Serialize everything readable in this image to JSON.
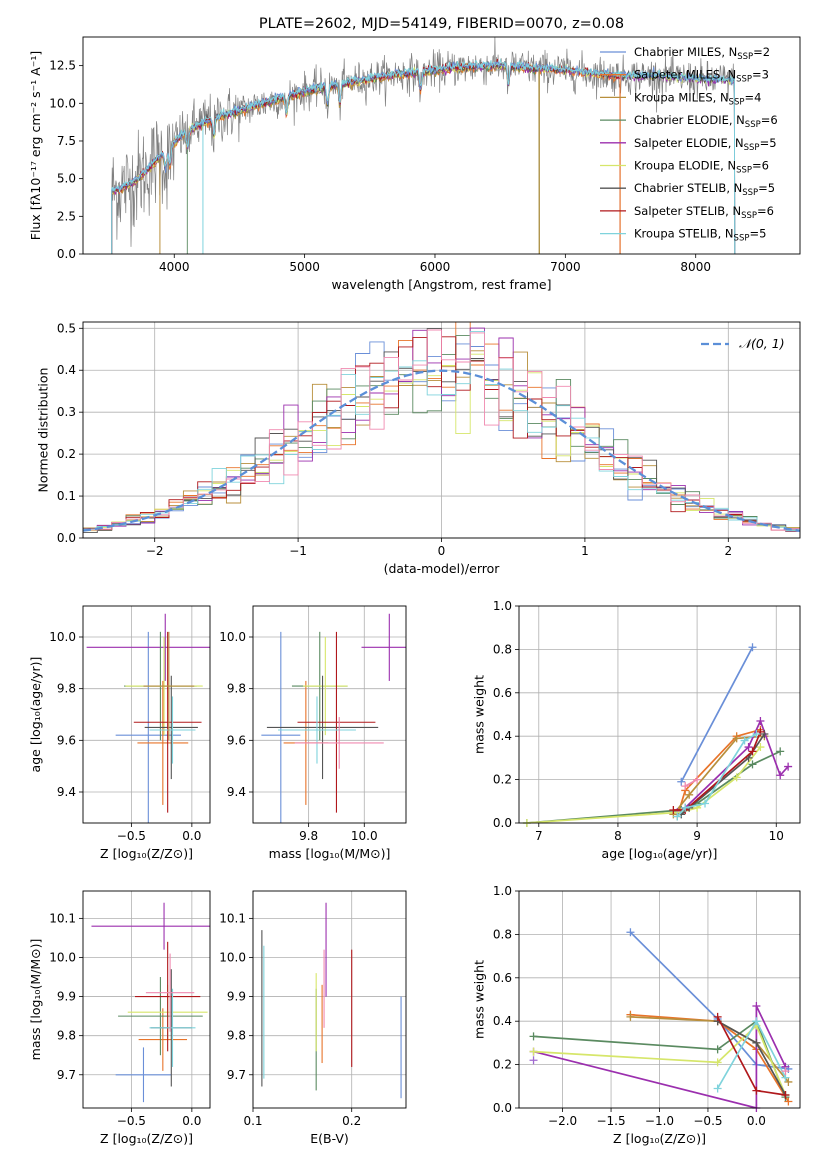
{
  "colors": {
    "Chabrier MILES": "#6a8fd8",
    "Salpeter MILES": "#e8742a",
    "Kroupa MILES": "#b88f3c",
    "Chabrier ELODIE": "#5a8a60",
    "Salpeter ELODIE": "#9b2fae",
    "Kroupa ELODIE": "#d6e66a",
    "Chabrier STELIB": "#555555",
    "Salpeter STELIB": "#b0181c",
    "Kroupa STELIB": "#7fd3dc",
    "extra_pink": "#f08ab0",
    "extra_olive": "#c6c02a",
    "extra_purple": "#a06ad0",
    "extra_lilac": "#c8a0e0",
    "normal_curve": "#5b8fd8",
    "grid": "#b0b0b0"
  },
  "chart_data": [
    {
      "id": "spectrum",
      "type": "line",
      "title": "PLATE=2602, MJD=54149, FIBERID=0070, z=0.08",
      "xlabel": "wavelength [Angstrom, rest frame]",
      "ylabel": "Flux [fλ10⁻¹⁷ erg cm⁻² s⁻¹ A⁻¹]",
      "xlim": [
        3300,
        8800
      ],
      "ylim": [
        0,
        14.4
      ],
      "xticks": [
        4000,
        5000,
        6000,
        7000,
        8000
      ],
      "xtick_labels": [
        "4000",
        "5000",
        "6000",
        "7000",
        "8000"
      ],
      "yticks": [
        0,
        2.5,
        5,
        7.5,
        10,
        12.5
      ],
      "ytick_labels": [
        "0.0",
        "2.5",
        "5.0",
        "7.5",
        "10.0",
        "12.5"
      ],
      "grid": false,
      "legend_placement": "right",
      "legend": [
        {
          "label": "Chabrier MILES, N",
          "sub": "SSP",
          "eq": "=2",
          "color_key": "Chabrier MILES"
        },
        {
          "label": "Salpeter MILES, N",
          "sub": "SSP",
          "eq": "=3",
          "color_key": "Salpeter MILES"
        },
        {
          "label": "Kroupa MILES, N",
          "sub": "SSP",
          "eq": "=4",
          "color_key": "Kroupa MILES"
        },
        {
          "label": "Chabrier ELODIE, N",
          "sub": "SSP",
          "eq": "=6",
          "color_key": "Chabrier ELODIE"
        },
        {
          "label": "Salpeter ELODIE, N",
          "sub": "SSP",
          "eq": "=5",
          "color_key": "Salpeter ELODIE"
        },
        {
          "label": "Kroupa ELODIE, N",
          "sub": "SSP",
          "eq": "=6",
          "color_key": "Kroupa ELODIE"
        },
        {
          "label": "Chabrier STELIB, N",
          "sub": "SSP",
          "eq": "=5",
          "color_key": "Chabrier STELIB"
        },
        {
          "label": "Salpeter STELIB, N",
          "sub": "SSP",
          "eq": "=6",
          "color_key": "Salpeter STELIB"
        },
        {
          "label": "Kroupa STELIB, N",
          "sub": "SSP",
          "eq": "=5",
          "color_key": "Kroupa STELIB"
        }
      ],
      "continuum": {
        "x": [
          3550,
          3700,
          3900,
          4100,
          4300,
          4500,
          4800,
          5000,
          5300,
          5600,
          5900,
          6200,
          6500,
          6800,
          7100,
          7400,
          7700,
          8000,
          8300
        ],
        "y": [
          4.2,
          4.8,
          6.5,
          8.2,
          9.0,
          9.5,
          10.3,
          10.8,
          11.3,
          11.8,
          12.1,
          12.4,
          12.5,
          12.3,
          12.1,
          11.8,
          11.8,
          11.6,
          11.5
        ]
      },
      "data_ranges": {
        "Chabrier MILES": [
          3520,
          8300
        ],
        "Salpeter MILES": [
          3520,
          7420
        ],
        "Kroupa MILES": [
          3520,
          6800
        ],
        "Chabrier ELODIE": [
          4100,
          6800
        ],
        "Salpeter ELODIE": [
          3520,
          8300
        ],
        "Kroupa ELODIE": [
          3520,
          8300
        ],
        "Chabrier STELIB": [
          3520,
          8300
        ],
        "Salpeter STELIB": [
          3520,
          7420
        ],
        "Kroupa STELIB": [
          3520,
          8300
        ]
      }
    },
    {
      "id": "residuals",
      "type": "line",
      "xlabel": "(data-model)/error",
      "ylabel": "Normed distribution",
      "xlim": [
        -2.5,
        2.5
      ],
      "ylim": [
        0,
        0.515
      ],
      "xticks": [
        -2,
        -1,
        0,
        1,
        2
      ],
      "xtick_labels": [
        "−2",
        "−1",
        "0",
        "1",
        "2"
      ],
      "yticks": [
        0,
        0.1,
        0.2,
        0.3,
        0.4,
        0.5
      ],
      "ytick_labels": [
        "0.0",
        "0.1",
        "0.2",
        "0.3",
        "0.4",
        "0.5"
      ],
      "grid": true,
      "legend_placement": "top-right",
      "legend": [
        {
          "label": "𝒩(0, 1)",
          "color_key": "normal_curve",
          "style": "dashed"
        }
      ],
      "bin_width": 0.1,
      "curve": {
        "mean": 0,
        "sigma": 1
      }
    },
    {
      "id": "age-vs-Z",
      "type": "scatter",
      "xlabel": "Z [log₁₀(Z/Z⊙)]",
      "ylabel": "age  [log₁₀(age/yr)]",
      "xlim": [
        -0.9,
        0.15
      ],
      "ylim": [
        9.28,
        10.12
      ],
      "xticks": [
        -0.5,
        0.0
      ],
      "xtick_labels": [
        "−0.5",
        "0.0"
      ],
      "yticks": [
        9.4,
        9.6,
        9.8,
        10.0
      ],
      "ytick_labels": [
        "9.4",
        "9.6",
        "9.8",
        "10.0"
      ],
      "grid": true,
      "errorbars": [
        {
          "color_key": "Chabrier MILES",
          "x": -0.36,
          "xerr": 0.27,
          "y": 9.62,
          "yerr": 0.4
        },
        {
          "color_key": "Salpeter ELODIE",
          "x": -0.22,
          "xerr": 0.65,
          "y": 9.96,
          "yerr": 0.13
        },
        {
          "color_key": "Salpeter MILES",
          "x": -0.24,
          "xerr": 0.21,
          "y": 9.59,
          "yerr": 0.24
        },
        {
          "color_key": "Chabrier ELODIE",
          "x": -0.26,
          "xerr": 0.3,
          "y": 9.81,
          "yerr": 0.21
        },
        {
          "color_key": "Kroupa ELODIE",
          "x": -0.23,
          "xerr": 0.32,
          "y": 9.81,
          "yerr": 0.19
        },
        {
          "color_key": "Chabrier STELIB",
          "x": -0.17,
          "xerr": 0.22,
          "y": 9.65,
          "yerr": 0.2
        },
        {
          "color_key": "Salpeter STELIB",
          "x": -0.2,
          "xerr": 0.28,
          "y": 9.67,
          "yerr": 0.35
        },
        {
          "color_key": "Kroupa STELIB",
          "x": -0.16,
          "xerr": 0.19,
          "y": 9.64,
          "yerr": 0.13
        },
        {
          "color_key": "Kroupa MILES",
          "x": -0.19,
          "xerr": 0.21,
          "y": 9.81,
          "yerr": 0.21
        }
      ]
    },
    {
      "id": "age-vs-mass",
      "type": "scatter",
      "xlabel": "mass [log₁₀(M/M⊙)]",
      "ylabel": "",
      "xlim": [
        9.6,
        10.15
      ],
      "ylim": [
        9.28,
        10.12
      ],
      "xticks": [
        9.8,
        10.0
      ],
      "xtick_labels": [
        "9.8",
        "10.0"
      ],
      "yticks": [
        9.4,
        9.6,
        9.8,
        10.0
      ],
      "ytick_labels": [
        "9.4",
        "9.6",
        "9.8",
        "10.0"
      ],
      "grid": true,
      "errorbars": [
        {
          "color_key": "Chabrier MILES",
          "x": 9.7,
          "xerr": 0.07,
          "y": 9.62,
          "yerr": 0.4
        },
        {
          "color_key": "Salpeter ELODIE",
          "x": 10.09,
          "xerr": 0.1,
          "y": 9.96,
          "yerr": 0.13
        },
        {
          "color_key": "Salpeter MILES",
          "x": 9.79,
          "xerr": 0.08,
          "y": 9.59,
          "yerr": 0.24
        },
        {
          "color_key": "Chabrier ELODIE",
          "x": 9.84,
          "xerr": 0.1,
          "y": 9.81,
          "yerr": 0.21
        },
        {
          "color_key": "Kroupa ELODIE",
          "x": 9.86,
          "xerr": 0.08,
          "y": 9.81,
          "yerr": 0.19
        },
        {
          "color_key": "Chabrier STELIB",
          "x": 9.85,
          "xerr": 0.2,
          "y": 9.65,
          "yerr": 0.2
        },
        {
          "color_key": "Salpeter STELIB",
          "x": 9.9,
          "xerr": 0.14,
          "y": 9.67,
          "yerr": 0.35
        },
        {
          "color_key": "Kroupa STELIB",
          "x": 9.83,
          "xerr": 0.14,
          "y": 9.64,
          "yerr": 0.13
        },
        {
          "color_key": "extra_pink",
          "x": 9.91,
          "xerr": 0.16,
          "y": 9.59,
          "yerr": 0.1
        }
      ]
    },
    {
      "id": "mass-weight-vs-age",
      "type": "line",
      "xlabel": "age  [log₁₀(age/yr)]",
      "ylabel": "mass weight",
      "xlim": [
        6.75,
        10.3
      ],
      "ylim": [
        0,
        1.0
      ],
      "xticks": [
        7,
        8,
        9,
        10
      ],
      "xtick_labels": [
        "7",
        "8",
        "9",
        "10"
      ],
      "yticks": [
        0,
        0.2,
        0.4,
        0.6,
        0.8,
        1.0
      ],
      "ytick_labels": [
        "0.0",
        "0.2",
        "0.4",
        "0.6",
        "0.8",
        "1.0"
      ],
      "grid": true,
      "series": [
        {
          "color_key": "Chabrier MILES",
          "x": [
            8.8,
            9.7
          ],
          "y": [
            0.19,
            0.81
          ]
        },
        {
          "color_key": "Salpeter MILES",
          "x": [
            8.75,
            8.85,
            9.5,
            9.8
          ],
          "y": [
            0.03,
            0.15,
            0.4,
            0.43
          ]
        },
        {
          "color_key": "Kroupa MILES",
          "x": [
            8.7,
            8.9,
            9.5,
            9.85
          ],
          "y": [
            0.04,
            0.13,
            0.39,
            0.4
          ]
        },
        {
          "color_key": "Chabrier ELODIE",
          "x": [
            6.85,
            8.8,
            9.0,
            9.7,
            10.05
          ],
          "y": [
            0.0,
            0.06,
            0.09,
            0.27,
            0.33
          ]
        },
        {
          "color_key": "Salpeter ELODIE",
          "x": [
            8.75,
            8.85,
            9.65,
            9.8,
            10.05,
            10.15
          ],
          "y": [
            0.05,
            0.07,
            0.35,
            0.47,
            0.22,
            0.26
          ]
        },
        {
          "color_key": "Kroupa ELODIE",
          "x": [
            6.85,
            8.8,
            9.0,
            9.5,
            9.8
          ],
          "y": [
            0.0,
            0.05,
            0.07,
            0.21,
            0.35
          ]
        },
        {
          "color_key": "Chabrier STELIB",
          "x": [
            8.8,
            8.9,
            9.65,
            9.85
          ],
          "y": [
            0.04,
            0.07,
            0.3,
            0.41
          ]
        },
        {
          "color_key": "Salpeter STELIB",
          "x": [
            8.7,
            8.85,
            9.7,
            9.8
          ],
          "y": [
            0.06,
            0.06,
            0.33,
            0.42
          ]
        },
        {
          "color_key": "Kroupa STELIB",
          "x": [
            8.75,
            8.85,
            9.1,
            9.6,
            9.75
          ],
          "y": [
            0.03,
            0.07,
            0.09,
            0.38,
            0.41
          ]
        },
        {
          "color_key": "extra_pink",
          "x": [
            8.85,
            9.0
          ],
          "y": [
            0.17,
            0.2
          ]
        }
      ]
    },
    {
      "id": "mass-vs-Z",
      "type": "scatter",
      "xlabel": "Z [log₁₀(Z/Z⊙)]",
      "ylabel": "mass [log₁₀(M/M⊙)]",
      "xlim": [
        -0.9,
        0.15
      ],
      "ylim": [
        9.615,
        10.17
      ],
      "xticks": [
        -0.5,
        0.0
      ],
      "xtick_labels": [
        "−0.5",
        "0.0"
      ],
      "yticks": [
        9.7,
        9.8,
        9.9,
        10.0,
        10.1
      ],
      "ytick_labels": [
        "9.7",
        "9.8",
        "9.9",
        "10.0",
        "10.1"
      ],
      "grid": true,
      "errorbars": [
        {
          "color_key": "Chabrier MILES",
          "x": -0.4,
          "xerr": 0.23,
          "y": 9.7,
          "yerr": 0.07
        },
        {
          "color_key": "Salpeter ELODIE",
          "x": -0.23,
          "xerr": 0.6,
          "y": 10.08,
          "yerr": 0.06
        },
        {
          "color_key": "Salpeter MILES",
          "x": -0.24,
          "xerr": 0.2,
          "y": 9.79,
          "yerr": 0.08
        },
        {
          "color_key": "Chabrier ELODIE",
          "x": -0.26,
          "xerr": 0.35,
          "y": 9.85,
          "yerr": 0.1
        },
        {
          "color_key": "Kroupa ELODIE",
          "x": -0.2,
          "xerr": 0.33,
          "y": 9.86,
          "yerr": 0.07
        },
        {
          "color_key": "Chabrier STELIB",
          "x": -0.17,
          "xerr": 0.17,
          "y": 9.82,
          "yerr": 0.15
        },
        {
          "color_key": "Salpeter STELIB",
          "x": -0.2,
          "xerr": 0.27,
          "y": 9.9,
          "yerr": 0.14
        },
        {
          "color_key": "Kroupa STELIB",
          "x": -0.16,
          "xerr": 0.19,
          "y": 9.82,
          "yerr": 0.1
        },
        {
          "color_key": "extra_pink",
          "x": -0.18,
          "xerr": 0.2,
          "y": 9.91,
          "yerr": 0.1
        }
      ]
    },
    {
      "id": "mass-vs-EBV",
      "type": "scatter",
      "xlabel": "E(B-V)",
      "ylabel": "",
      "xlim": [
        0.1,
        0.255
      ],
      "ylim": [
        9.615,
        10.17
      ],
      "xticks": [
        0.1,
        0.2
      ],
      "xtick_labels": [
        "0.1",
        "0.2"
      ],
      "yticks": [
        9.7,
        9.8,
        9.9,
        10.0,
        10.1
      ],
      "ytick_labels": [
        "9.7",
        "9.8",
        "9.9",
        "10.0",
        "10.1"
      ],
      "grid": true,
      "errorbars": [
        {
          "color_key": "Chabrier MILES",
          "x": 0.25,
          "xerr": 0.0,
          "y": 9.77,
          "yerr": 0.13
        },
        {
          "color_key": "Salpeter ELODIE",
          "x": 0.174,
          "xerr": 0.0,
          "y": 10.02,
          "yerr": 0.12
        },
        {
          "color_key": "Salpeter MILES",
          "x": 0.17,
          "xerr": 0.0,
          "y": 9.83,
          "yerr": 0.1
        },
        {
          "color_key": "Chabrier ELODIE",
          "x": 0.164,
          "xerr": 0.0,
          "y": 9.79,
          "yerr": 0.13
        },
        {
          "color_key": "Kroupa ELODIE",
          "x": 0.164,
          "xerr": 0.0,
          "y": 9.86,
          "yerr": 0.1
        },
        {
          "color_key": "Chabrier STELIB",
          "x": 0.109,
          "xerr": 0.0,
          "y": 9.87,
          "yerr": 0.2
        },
        {
          "color_key": "Salpeter STELIB",
          "x": 0.2,
          "xerr": 0.0,
          "y": 9.87,
          "yerr": 0.15
        },
        {
          "color_key": "Kroupa STELIB",
          "x": 0.111,
          "xerr": 0.0,
          "y": 9.86,
          "yerr": 0.17
        },
        {
          "color_key": "extra_pink",
          "x": 0.172,
          "xerr": 0.0,
          "y": 9.92,
          "yerr": 0.1
        }
      ]
    },
    {
      "id": "mass-weight-vs-Z",
      "type": "line",
      "xlabel": "Z [log₁₀(Z/Z⊙)]",
      "ylabel": "mass weight",
      "xlim": [
        -2.45,
        0.45
      ],
      "ylim": [
        0,
        1.0
      ],
      "xticks": [
        -2.0,
        -1.5,
        -1.0,
        -0.5,
        0.0
      ],
      "xtick_labels": [
        "−2.0",
        "−1.5",
        "−1.0",
        "−0.5",
        "0.0"
      ],
      "yticks": [
        0,
        0.2,
        0.4,
        0.6,
        0.8,
        1.0
      ],
      "ytick_labels": [
        "0.0",
        "0.2",
        "0.4",
        "0.6",
        "0.8",
        "1.0"
      ],
      "grid": true,
      "series": [
        {
          "color_key": "Chabrier MILES",
          "x": [
            -1.3,
            -0.4,
            0.0,
            0.33
          ],
          "y": [
            0.81,
            0.41,
            0.2,
            0.18
          ]
        },
        {
          "color_key": "Salpeter MILES",
          "x": [
            -1.3,
            -0.4,
            0.0,
            0.33
          ],
          "y": [
            0.43,
            0.4,
            0.27,
            0.03
          ]
        },
        {
          "color_key": "Kroupa MILES",
          "x": [
            -1.3,
            -0.4,
            0.0,
            0.33
          ],
          "y": [
            0.42,
            0.4,
            0.3,
            0.12
          ]
        },
        {
          "color_key": "Chabrier ELODIE",
          "x": [
            -2.3,
            -0.4,
            0.0,
            0.3
          ],
          "y": [
            0.33,
            0.27,
            0.4,
            0.05
          ]
        },
        {
          "color_key": "Salpeter ELODIE",
          "x": [
            -2.3,
            0.0,
            0.0,
            0.3
          ],
          "y": [
            0.26,
            0.0,
            0.47,
            0.19
          ]
        },
        {
          "color_key": "Kroupa ELODIE",
          "x": [
            -2.3,
            -0.4,
            0.0,
            0.3
          ],
          "y": [
            0.26,
            0.21,
            0.38,
            0.06
          ]
        },
        {
          "color_key": "Chabrier STELIB",
          "x": [
            -0.4,
            0.0,
            0.3
          ],
          "y": [
            0.4,
            0.3,
            0.06
          ]
        },
        {
          "color_key": "Salpeter STELIB",
          "x": [
            -0.4,
            0.0,
            0.3
          ],
          "y": [
            0.42,
            0.08,
            0.06
          ]
        },
        {
          "color_key": "Kroupa STELIB",
          "x": [
            -0.4,
            0.0,
            0.3
          ],
          "y": [
            0.09,
            0.4,
            0.14
          ]
        },
        {
          "color_key": "extra_purple",
          "x": [
            -2.3
          ],
          "y": [
            0.22
          ]
        },
        {
          "color_key": "extra_pink",
          "x": [
            0.3
          ],
          "y": [
            0.17
          ]
        }
      ]
    }
  ]
}
